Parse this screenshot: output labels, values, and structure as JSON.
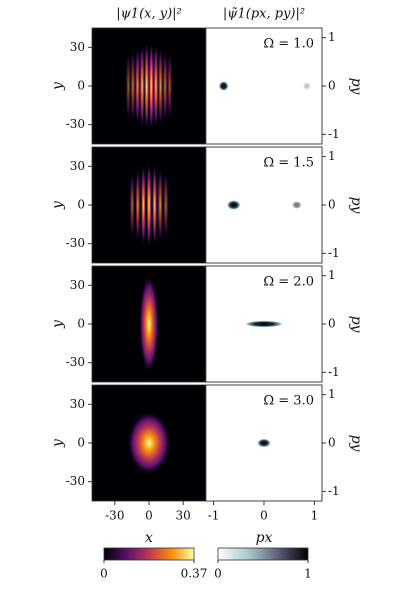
{
  "chart_data": [
    {
      "type": "heatmap",
      "title": "|ψ1(x, y)|²",
      "x_label": "x",
      "y_label": "y",
      "xlim": [
        -50,
        50
      ],
      "ylim": [
        -45,
        45
      ],
      "xticks": [
        -30,
        0,
        30
      ],
      "yticks": [
        30,
        0,
        -30
      ],
      "colorbar": {
        "colormap": "inferno",
        "lim": [
          0,
          0.37
        ],
        "ticks": [
          0,
          0.37
        ]
      }
    },
    {
      "type": "heatmap",
      "title": "|ψ̃1(px, py)|²",
      "x_label": "px",
      "y_label": "py",
      "xlim": [
        -1.15,
        1.15
      ],
      "ylim": [
        -1.2,
        1.2
      ],
      "xticks": [
        -1,
        0,
        1
      ],
      "yticks": [
        1,
        0,
        -1
      ],
      "annotations": [
        "Ω = 1.0",
        "Ω = 1.5",
        "Ω = 2.0",
        "Ω = 3.0"
      ],
      "colorbar": {
        "colormap": "bone_r",
        "lim": [
          0,
          1
        ],
        "ticks": [
          0,
          1
        ]
      }
    }
  ]
}
